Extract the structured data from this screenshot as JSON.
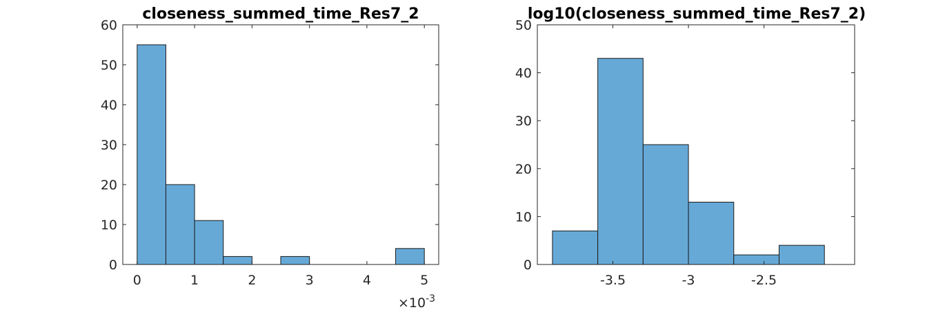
{
  "chart_data": [
    {
      "type": "bar",
      "title": "closeness_summed_time_Res7_2",
      "xlabel": "",
      "ylabel": "",
      "x_exponent_label": "×10",
      "x_exponent_power": "-3",
      "bin_edges": [
        0,
        0.5,
        1.0,
        1.5,
        2.0,
        2.5,
        3.0,
        3.5,
        4.0,
        4.5,
        5.0
      ],
      "values": [
        55,
        20,
        11,
        2,
        0,
        2,
        0,
        0,
        0,
        4
      ],
      "xlim": [
        -0.25,
        5.25
      ],
      "ylim": [
        0,
        60
      ],
      "xticks": [
        0,
        1,
        2,
        3,
        4,
        5
      ],
      "xtick_labels": [
        "0",
        "1",
        "2",
        "3",
        "4",
        "5"
      ],
      "yticks": [
        0,
        10,
        20,
        30,
        40,
        50,
        60
      ],
      "ytick_labels": [
        "0",
        "10",
        "20",
        "30",
        "40",
        "50",
        "60"
      ],
      "bar_color": "#66a9d7",
      "grid": false
    },
    {
      "type": "bar",
      "title": "log10(closeness_summed_time_Res7_2)",
      "xlabel": "",
      "ylabel": "",
      "bin_edges": [
        -3.9,
        -3.6,
        -3.3,
        -3.0,
        -2.7,
        -2.4,
        -2.1
      ],
      "values": [
        7,
        43,
        25,
        13,
        2,
        4
      ],
      "xlim": [
        -4.0,
        -1.9
      ],
      "ylim": [
        0,
        50
      ],
      "xticks": [
        -3.5,
        -3.0,
        -2.5
      ],
      "xtick_labels": [
        "-3.5",
        "-3",
        "-2.5"
      ],
      "yticks": [
        0,
        10,
        20,
        30,
        40,
        50
      ],
      "ytick_labels": [
        "0",
        "10",
        "20",
        "30",
        "40",
        "50"
      ],
      "bar_color": "#66a9d7",
      "grid": false
    }
  ]
}
